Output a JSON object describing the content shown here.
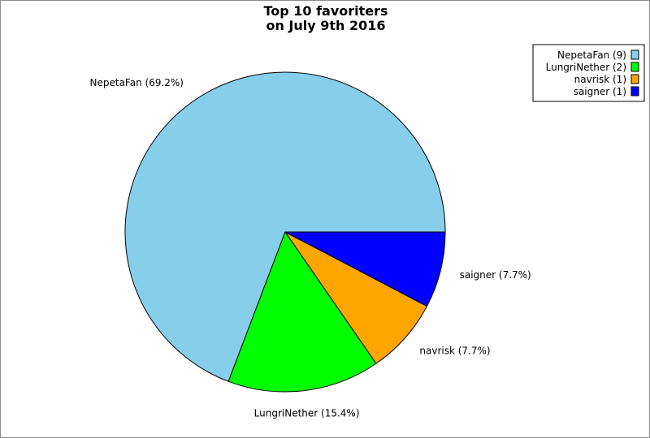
{
  "chart_data": {
    "type": "pie",
    "title": [
      "Top 10 favoriters",
      "on July 9th 2016"
    ],
    "slices": [
      {
        "name": "NepetaFan",
        "value": 9,
        "percent_label": "NepetaFan (69.2%)",
        "legend_label": "NepetaFan (9)",
        "color": "#87CEEB"
      },
      {
        "name": "LungriNether",
        "value": 2,
        "percent_label": "LungriNether (15.4%)",
        "legend_label": "LungriNether (2)",
        "color": "#00FF00"
      },
      {
        "name": "navrisk",
        "value": 1,
        "percent_label": "navrisk (7.7%)",
        "legend_label": "navrisk (1)",
        "color": "#FFA500"
      },
      {
        "name": "saigner",
        "value": 1,
        "percent_label": "saigner (7.7%)",
        "legend_label": "saigner (1)",
        "color": "#0000FF"
      }
    ],
    "start_angle": "3 o'clock",
    "direction": "counterclockwise",
    "legend_position": "top-right"
  }
}
